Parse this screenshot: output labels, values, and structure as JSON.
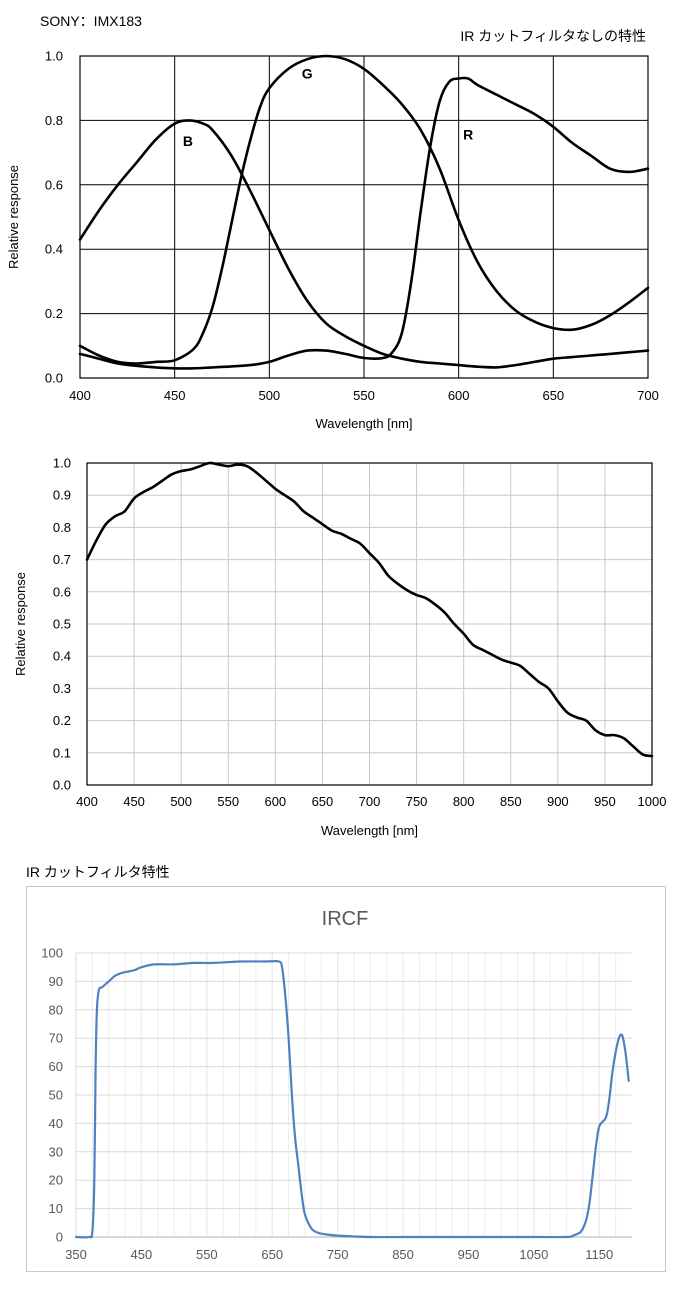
{
  "header": {
    "brand": "SONY：IMX183",
    "chart1_heading": "IR カットフィルタなしの特性",
    "chart3_heading": "IR カットフィルタ特性"
  },
  "chart_data": [
    {
      "type": "line",
      "title": "IR カットフィルタなしの特性",
      "xlabel": "Wavelength [nm]",
      "ylabel": "Relative response",
      "xlim": [
        400,
        700
      ],
      "ylim": [
        0.0,
        1.0
      ],
      "x_ticks": [
        "400",
        "450",
        "500",
        "550",
        "600",
        "650",
        "700"
      ],
      "y_ticks": [
        "0.0",
        "0.2",
        "0.4",
        "0.6",
        "0.8",
        "1.0"
      ],
      "grid": true,
      "series_color": "#000000",
      "series": [
        {
          "name": "B",
          "x": [
            400,
            410,
            420,
            430,
            440,
            450,
            458,
            465,
            470,
            480,
            490,
            500,
            510,
            520,
            530,
            540,
            550,
            560,
            570,
            580,
            590,
            600,
            610,
            620,
            630,
            640,
            650,
            660,
            670,
            680,
            690,
            700
          ],
          "y": [
            0.43,
            0.52,
            0.6,
            0.67,
            0.74,
            0.79,
            0.8,
            0.79,
            0.77,
            0.69,
            0.58,
            0.46,
            0.34,
            0.24,
            0.17,
            0.13,
            0.1,
            0.075,
            0.06,
            0.05,
            0.045,
            0.04,
            0.035,
            0.033,
            0.04,
            0.05,
            0.06,
            0.065,
            0.07,
            0.075,
            0.08,
            0.085
          ]
        },
        {
          "name": "G",
          "x": [
            400,
            410,
            420,
            430,
            440,
            450,
            460,
            465,
            470,
            475,
            480,
            485,
            490,
            495,
            500,
            510,
            520,
            530,
            540,
            550,
            560,
            570,
            580,
            590,
            600,
            610,
            620,
            630,
            640,
            650,
            660,
            670,
            680,
            690,
            700
          ],
          "y": [
            0.1,
            0.07,
            0.05,
            0.045,
            0.05,
            0.055,
            0.09,
            0.14,
            0.22,
            0.34,
            0.48,
            0.62,
            0.74,
            0.84,
            0.9,
            0.96,
            0.99,
            1.0,
            0.99,
            0.96,
            0.91,
            0.85,
            0.77,
            0.65,
            0.49,
            0.36,
            0.27,
            0.21,
            0.175,
            0.155,
            0.15,
            0.165,
            0.195,
            0.235,
            0.28
          ]
        },
        {
          "name": "R",
          "x": [
            400,
            410,
            420,
            430,
            440,
            450,
            460,
            470,
            480,
            490,
            500,
            510,
            520,
            530,
            540,
            550,
            560,
            565,
            570,
            575,
            580,
            585,
            590,
            595,
            600,
            605,
            610,
            620,
            630,
            640,
            650,
            660,
            670,
            680,
            690,
            700
          ],
          "y": [
            0.075,
            0.06,
            0.045,
            0.038,
            0.033,
            0.03,
            0.03,
            0.033,
            0.036,
            0.04,
            0.05,
            0.07,
            0.085,
            0.085,
            0.075,
            0.062,
            0.062,
            0.08,
            0.14,
            0.3,
            0.52,
            0.72,
            0.86,
            0.92,
            0.93,
            0.93,
            0.91,
            0.88,
            0.85,
            0.82,
            0.78,
            0.73,
            0.69,
            0.65,
            0.64,
            0.65
          ]
        }
      ],
      "annotations": [
        {
          "text": "B",
          "x": 457,
          "y": 0.72
        },
        {
          "text": "G",
          "x": 520,
          "y": 0.93
        },
        {
          "text": "R",
          "x": 605,
          "y": 0.74
        }
      ]
    },
    {
      "type": "line",
      "xlabel": "Wavelength [nm]",
      "ylabel": "Relative response",
      "xlim": [
        400,
        1000
      ],
      "ylim": [
        0.0,
        1.0
      ],
      "x_ticks": [
        "400",
        "450",
        "500",
        "550",
        "600",
        "650",
        "700",
        "750",
        "800",
        "850",
        "900",
        "950",
        "1000"
      ],
      "y_ticks": [
        "0.0",
        "0.1",
        "0.2",
        "0.3",
        "0.4",
        "0.5",
        "0.6",
        "0.7",
        "0.8",
        "0.9",
        "1.0"
      ],
      "grid": true,
      "series_color": "#000000",
      "series": [
        {
          "x": [
            400,
            410,
            420,
            430,
            440,
            450,
            460,
            470,
            480,
            490,
            500,
            510,
            520,
            530,
            540,
            550,
            560,
            570,
            580,
            590,
            600,
            610,
            620,
            630,
            640,
            650,
            660,
            670,
            680,
            690,
            700,
            710,
            720,
            730,
            740,
            750,
            760,
            770,
            780,
            790,
            800,
            810,
            820,
            830,
            840,
            850,
            860,
            870,
            880,
            890,
            900,
            910,
            920,
            930,
            940,
            950,
            960,
            970,
            980,
            990,
            1000
          ],
          "y": [
            0.7,
            0.76,
            0.81,
            0.835,
            0.85,
            0.89,
            0.91,
            0.925,
            0.945,
            0.965,
            0.975,
            0.98,
            0.99,
            1.0,
            0.995,
            0.99,
            0.995,
            0.99,
            0.97,
            0.945,
            0.92,
            0.9,
            0.88,
            0.85,
            0.83,
            0.81,
            0.79,
            0.78,
            0.765,
            0.75,
            0.72,
            0.69,
            0.65,
            0.625,
            0.605,
            0.59,
            0.58,
            0.56,
            0.535,
            0.5,
            0.47,
            0.435,
            0.42,
            0.405,
            0.39,
            0.38,
            0.37,
            0.345,
            0.32,
            0.3,
            0.26,
            0.225,
            0.21,
            0.2,
            0.17,
            0.155,
            0.155,
            0.145,
            0.12,
            0.095,
            0.09
          ]
        }
      ]
    },
    {
      "type": "line",
      "title": "IRCF",
      "xlabel": "",
      "ylabel": "",
      "xlim": [
        350,
        1200
      ],
      "ylim": [
        0,
        100
      ],
      "x_ticks": [
        "350",
        "450",
        "550",
        "650",
        "750",
        "850",
        "950",
        "1050",
        "1150"
      ],
      "y_ticks": [
        "0",
        "10",
        "20",
        "30",
        "40",
        "50",
        "60",
        "70",
        "80",
        "90",
        "100"
      ],
      "grid": true,
      "series_color": "#4f81bd",
      "series": [
        {
          "x": [
            350,
            370,
            375,
            378,
            380,
            382,
            385,
            390,
            400,
            410,
            420,
            430,
            440,
            450,
            470,
            500,
            530,
            560,
            600,
            640,
            660,
            665,
            670,
            675,
            680,
            685,
            690,
            695,
            700,
            710,
            720,
            730,
            750,
            800,
            850,
            900,
            950,
            1000,
            1050,
            1100,
            1110,
            1120,
            1125,
            1130,
            1135,
            1140,
            1145,
            1150,
            1160,
            1165,
            1170,
            1175,
            1180,
            1185,
            1190,
            1195
          ],
          "y": [
            0,
            0,
            2,
            20,
            60,
            80,
            87,
            88,
            90,
            92,
            93,
            93.5,
            94,
            95,
            96,
            96,
            96.5,
            96.5,
            97,
            97,
            97,
            95,
            85,
            70,
            50,
            35,
            25,
            15,
            8,
            3,
            1.5,
            1,
            0.5,
            0,
            0,
            0,
            0,
            0,
            0,
            0,
            0.5,
            1.5,
            3,
            6,
            12,
            22,
            32,
            39,
            42,
            48,
            58,
            65,
            70,
            71,
            65,
            55
          ]
        }
      ]
    }
  ]
}
